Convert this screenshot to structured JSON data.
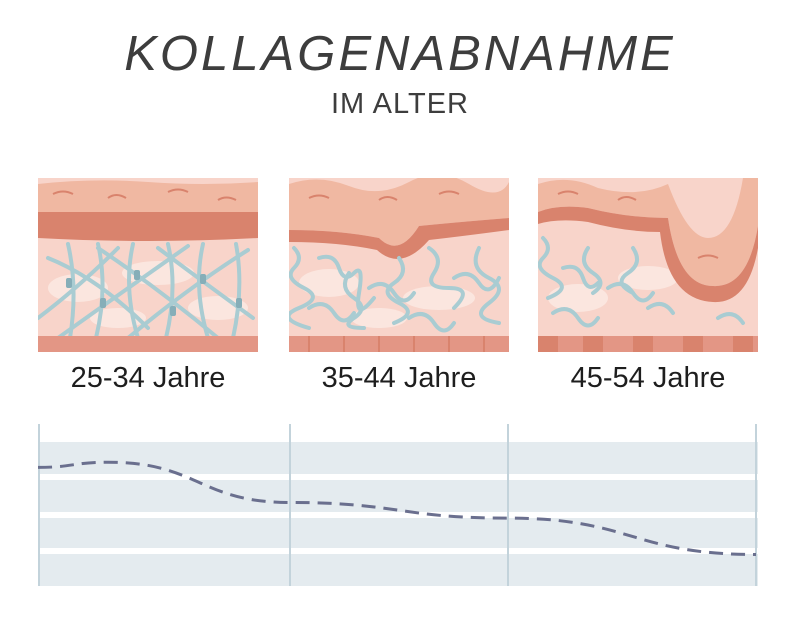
{
  "header": {
    "title": "KOLLAGENABNAHME",
    "subtitle": "IM ALTER"
  },
  "stages": [
    {
      "label": "25-34 Jahre"
    },
    {
      "label": "35-44 Jahre"
    },
    {
      "label": "45-54 Jahre"
    }
  ],
  "trend": {
    "description_color": "#6a6f8e",
    "relative_level": [
      0.82,
      0.86,
      0.55,
      0.43,
      0.15
    ]
  },
  "colors": {
    "epidermis": "#f0b8a2",
    "epidermis_dark": "#d9836d",
    "dermis": "#f8d4ca",
    "dermis_light": "#fbe6df",
    "fiber": "#a9ccd2",
    "fiber_dark": "#86aeb8",
    "base": "#e39685",
    "chart_band": "#e4ebef",
    "chart_line": "#6a6f8e"
  }
}
